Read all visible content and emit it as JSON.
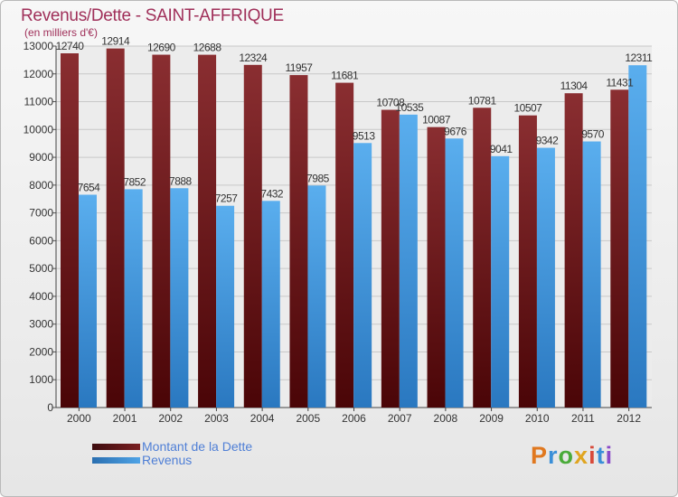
{
  "title": "Revenus/Dette - SAINT-AFFRIQUE",
  "unit_label": "(en milliers d'€)",
  "logo": {
    "text": "Proxiti",
    "letters": [
      "P",
      "r",
      "o",
      "x",
      "i",
      "t",
      "i"
    ],
    "colors": [
      "#e0781f",
      "#3a8fd8",
      "#4aab3a",
      "#e0a520",
      "#d84a3a",
      "#3a8fd8",
      "#8a4ac8"
    ]
  },
  "colors": {
    "dette": "#7a1f22",
    "revenus": "#4fa3e6",
    "title": "#a0305a",
    "legend_text": "#4f7fd6"
  },
  "chart_data": {
    "type": "bar",
    "title": "Revenus/Dette - SAINT-AFFRIQUE",
    "ylabel": "(en milliers d'€)",
    "xlabel": "",
    "ylim": [
      0,
      13000
    ],
    "yticks": [
      0,
      1000,
      2000,
      3000,
      4000,
      5000,
      6000,
      7000,
      8000,
      9000,
      10000,
      11000,
      12000,
      13000
    ],
    "categories": [
      "2000",
      "2001",
      "2002",
      "2003",
      "2004",
      "2005",
      "2006",
      "2007",
      "2008",
      "2009",
      "2010",
      "2011",
      "2012"
    ],
    "series": [
      {
        "name": "Montant de la Dette",
        "color": "#7a1f22",
        "values": [
          12740,
          12914,
          12690,
          12688,
          12324,
          11957,
          11681,
          10708,
          10087,
          10781,
          10507,
          11304,
          11431
        ]
      },
      {
        "name": "Revenus",
        "color": "#4fa3e6",
        "values": [
          7654,
          7852,
          7888,
          7257,
          7432,
          7985,
          9513,
          10535,
          9676,
          9041,
          9342,
          9570,
          12311
        ]
      }
    ],
    "grid": true,
    "legend_position": "bottom-left"
  }
}
